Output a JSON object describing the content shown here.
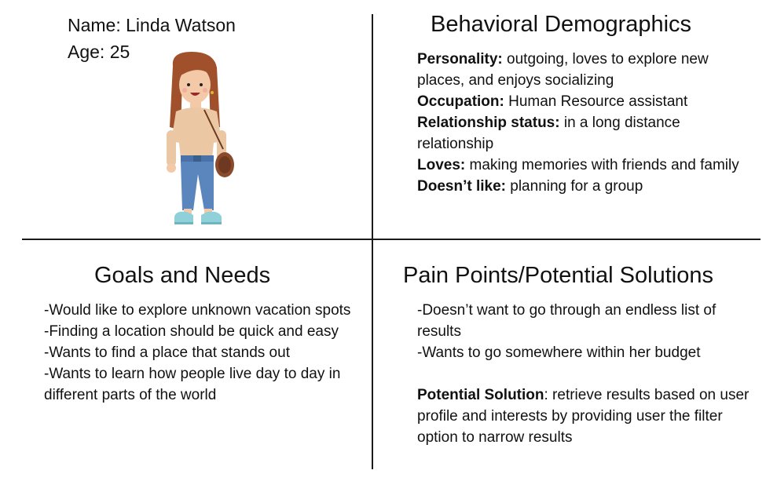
{
  "persona": {
    "name_label": "Name:",
    "name": "Linda Watson",
    "age_label": "Age:",
    "age": "25"
  },
  "behavioral": {
    "title": "Behavioral Demographics",
    "items": [
      {
        "label": "Personality:",
        "value": "outgoing, loves to explore new places, and enjoys socializing"
      },
      {
        "label": "Occupation:",
        "value": "Human Resource assistant"
      },
      {
        "label": "Relationship status:",
        "value": "in a long distance relationship"
      },
      {
        "label": "Loves:",
        "value": "making memories with friends and family"
      },
      {
        "label": "Doesn’t like:",
        "value": "planning for a group"
      }
    ]
  },
  "goals": {
    "title": "Goals and Needs",
    "items": [
      "-Would like to explore unknown vacation spots",
      "-Finding a location should be quick and easy",
      "-Wants to find a place that stands out",
      "-Wants to learn how people live day to day in different parts of the world"
    ]
  },
  "pain_points": {
    "title": "Pain Points/Potential Solutions",
    "items": [
      "-Doesn’t want to go through an endless list of results",
      "-Wants to go somewhere within her budget"
    ],
    "solution_label": "Potential Solution",
    "solution_value": ": retrieve results based on user profile and interests by providing user the filter option to narrow results"
  },
  "colors": {
    "hair": "#a0502a",
    "skin": "#f3c9a8",
    "shirt": "#ebc7a4",
    "jeans": "#5b86bd",
    "bag": "#8a4a2c",
    "shoes": "#8fd0d9",
    "divider": "#1a1a1a"
  }
}
